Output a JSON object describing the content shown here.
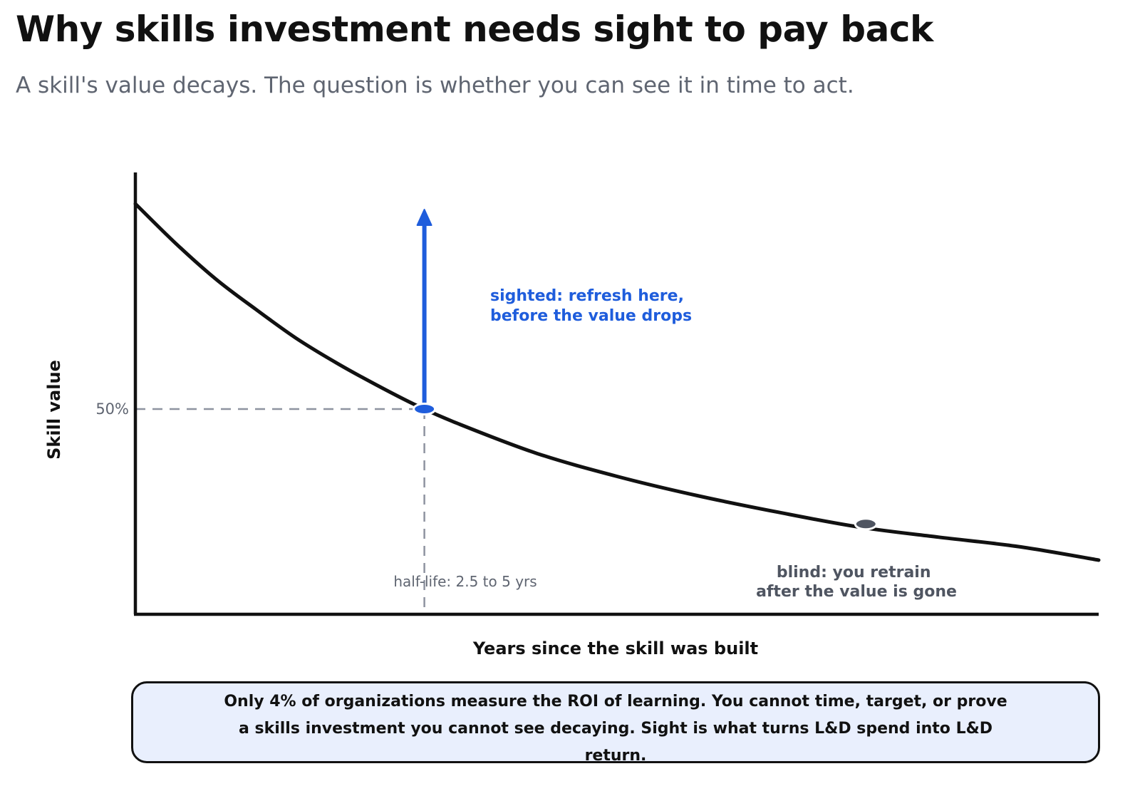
{
  "header": {
    "title": "Why skills investment needs sight to pay back",
    "subtitle": "A skill's value decays. The question is whether you can see it in time to act."
  },
  "chart_data": {
    "type": "line",
    "xlabel": "Years since the skill was built",
    "ylabel": "Skill value",
    "y_ticks": [
      {
        "value": 50,
        "label": "50%"
      }
    ],
    "series": [
      {
        "curve": "exponential decay",
        "points": [
          {
            "x": 0,
            "y": 100
          },
          {
            "x": 0.5,
            "y": 90.4
          },
          {
            "x": 1,
            "y": 81.7
          },
          {
            "x": 1.5,
            "y": 74.3
          },
          {
            "x": 2,
            "y": 67.3
          },
          {
            "x": 2.5,
            "y": 61.3
          },
          {
            "x": 3,
            "y": 55.9
          },
          {
            "x": 3.5,
            "y": 50.9
          },
          {
            "x": 4,
            "y": 46.6
          },
          {
            "x": 5,
            "y": 39.2
          },
          {
            "x": 6,
            "y": 33.6
          },
          {
            "x": 7,
            "y": 28.9
          },
          {
            "x": 8,
            "y": 24.9
          },
          {
            "x": 9,
            "y": 21.3
          },
          {
            "x": 10,
            "y": 18.8
          },
          {
            "x": 11,
            "y": 16.5
          },
          {
            "x": 12,
            "y": 13.2
          }
        ],
        "color": "#111111"
      }
    ],
    "markers": [
      {
        "id": "sighted",
        "point": {
          "x": 3.6,
          "y": 50
        },
        "color": "#1f5ddc",
        "label_lines": [
          "sighted: refresh here,",
          "before the value drops"
        ],
        "arrow": "up"
      },
      {
        "id": "blind",
        "point": {
          "x": 9.1,
          "y": 22
        },
        "color": "#4f5561",
        "label_lines": [
          "blind: you retrain",
          "after the value is gone"
        ]
      }
    ],
    "guides": {
      "color": "#8e93a0",
      "halflife_label": "half-life: 2.5 to 5 yrs"
    },
    "axis_color": "#111111"
  },
  "callout": {
    "text": "Only 4% of organizations measure the ROI of learning. You cannot time, target, or prove a skills investment you cannot see decaying. Sight is what turns L&D spend into L&D return."
  }
}
